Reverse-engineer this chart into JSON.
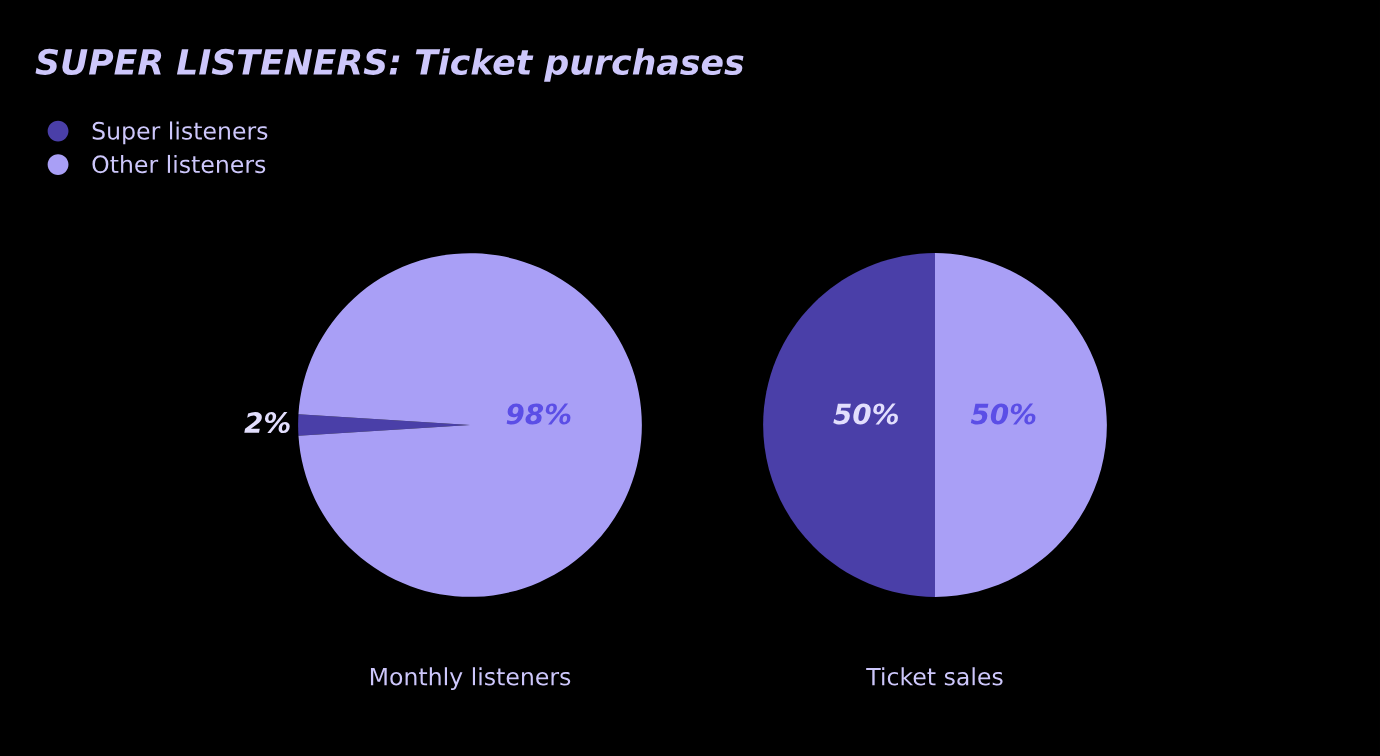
{
  "chart_data": [
    {
      "type": "pie",
      "title": "SUPER LISTENERS: Ticket purchases",
      "xlabel": "Monthly listeners",
      "categories": [
        "Super listeners",
        "Other listeners"
      ],
      "values": [
        2,
        98
      ],
      "colors": [
        "#4a3fa8",
        "#a99ff6"
      ],
      "value_labels": [
        "2%",
        "98%"
      ],
      "legend": "top left"
    },
    {
      "type": "pie",
      "xlabel": "Ticket sales",
      "categories": [
        null,
        null
      ],
      "values": [
        50,
        50
      ],
      "colors": [
        "#4a3fa8",
        "#a99ff6"
      ],
      "value_labels": [
        "50%",
        "50%"
      ]
    }
  ]
}
